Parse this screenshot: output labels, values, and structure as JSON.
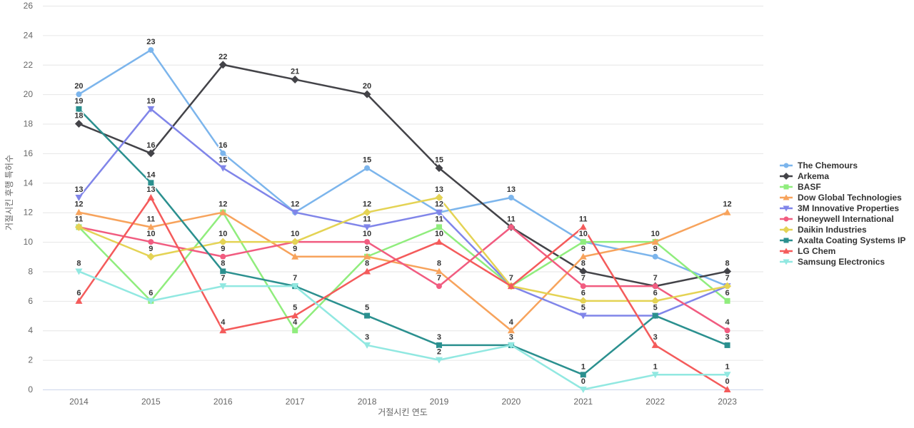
{
  "chart_data": {
    "type": "line",
    "title": "",
    "xlabel": "거절시킨 연도",
    "ylabel": "거절시킨 후행 특허수",
    "categories": [
      "2014",
      "2015",
      "2016",
      "2017",
      "2018",
      "2019",
      "2020",
      "2021",
      "2022",
      "2023"
    ],
    "ylim": [
      0,
      26
    ],
    "y_ticks": [
      0,
      2,
      4,
      6,
      8,
      10,
      12,
      14,
      16,
      18,
      20,
      22,
      24,
      26
    ],
    "grid": "horizontal-only",
    "legend_position": "right-middle",
    "data_labels": true,
    "series": [
      {
        "name": "The Chemours",
        "color": "#7cb5ec",
        "marker": "circle",
        "values": [
          20,
          23,
          16,
          12,
          15,
          12,
          13,
          10,
          9,
          7
        ]
      },
      {
        "name": "Arkema",
        "color": "#434348",
        "marker": "diamond",
        "values": [
          18,
          16,
          22,
          21,
          20,
          15,
          11,
          8,
          7,
          8
        ]
      },
      {
        "name": "BASF",
        "color": "#90ed7d",
        "marker": "square",
        "values": [
          11,
          6,
          12,
          4,
          9,
          11,
          7,
          10,
          10,
          6
        ]
      },
      {
        "name": "Dow Global Technologies",
        "color": "#f7a35c",
        "marker": "triangle",
        "values": [
          12,
          11,
          12,
          9,
          9,
          8,
          4,
          9,
          10,
          12
        ]
      },
      {
        "name": "3M Innovative Properties",
        "color": "#8085e9",
        "marker": "triangle-down",
        "values": [
          13,
          19,
          15,
          12,
          11,
          12,
          7,
          5,
          5,
          7
        ]
      },
      {
        "name": "Honeywell International",
        "color": "#f15c80",
        "marker": "circle",
        "values": [
          11,
          10,
          9,
          10,
          10,
          7,
          11,
          7,
          7,
          4
        ]
      },
      {
        "name": "Daikin Industries",
        "color": "#e4d354",
        "marker": "diamond",
        "values": [
          11,
          9,
          10,
          10,
          12,
          13,
          7,
          6,
          6,
          7
        ]
      },
      {
        "name": "Axalta Coating Systems IP",
        "color": "#2b908f",
        "marker": "square",
        "values": [
          19,
          14,
          8,
          7,
          5,
          3,
          3,
          1,
          5,
          3
        ]
      },
      {
        "name": "LG Chem",
        "color": "#f45b5b",
        "marker": "triangle",
        "values": [
          6,
          13,
          4,
          5,
          8,
          10,
          7,
          11,
          3,
          0
        ]
      },
      {
        "name": "Samsung Electronics",
        "color": "#91e8e1",
        "marker": "triangle-down",
        "values": [
          8,
          6,
          7,
          7,
          3,
          2,
          3,
          0,
          1,
          1
        ]
      }
    ],
    "colors": {
      "grid": "#e6e6e6",
      "axis_line": "#ccd6eb",
      "tick_label": "#666666",
      "axis_title": "#666666",
      "data_label": "#333333",
      "legend_text": "#333333"
    }
  }
}
